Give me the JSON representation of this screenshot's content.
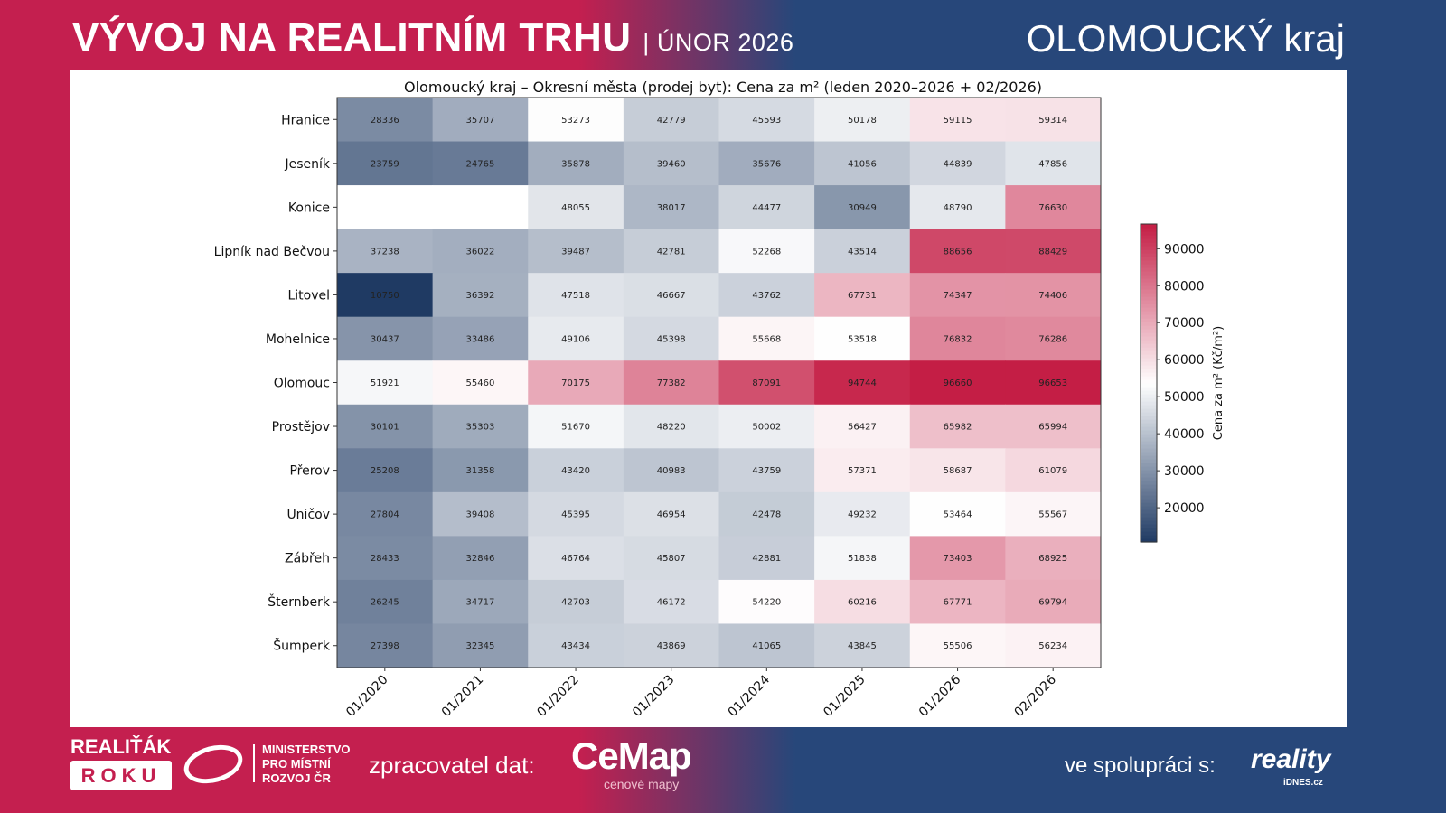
{
  "header": {
    "title": "VÝVOJ NA REALITNÍM TRHU",
    "separator": "|",
    "subtitle": "ÚNOR 2026",
    "region": "OLOMOUCKÝ kraj"
  },
  "footer": {
    "award_line1": "REALIŤÁK",
    "award_line2": "ROKU",
    "ministry": [
      "MINISTERSTVO",
      "PRO MÍSTNÍ",
      "ROZVOJ ČR"
    ],
    "processor_label": "zpracovatel dat:",
    "cemap_logo": "CeMap",
    "cemap_tagline": "cenové mapy",
    "partner_label": "ve spolupráci s:",
    "partner_logo": "reality",
    "partner_logo_sub": "iDNES.cz"
  },
  "colors": {
    "low": "#1f3a63",
    "mid": "#ffffff",
    "high": "#c41e45",
    "brand_red": "#c41f4f",
    "brand_blue": "#27477a"
  },
  "chart_data": {
    "type": "heatmap",
    "title": "Olomoucký kraj – Okresní města (prodej byt): Cena za m² (leden 2020–2026 + 02/2026)",
    "x_labels": [
      "01/2020",
      "01/2021",
      "01/2022",
      "01/2023",
      "01/2024",
      "01/2025",
      "01/2026",
      "02/2026"
    ],
    "y_labels": [
      "Hranice",
      "Jeseník",
      "Konice",
      "Lipník nad Bečvou",
      "Litovel",
      "Mohelnice",
      "Olomouc",
      "Prostějov",
      "Přerov",
      "Uničov",
      "Zábřeh",
      "Šternberk",
      "Šumperk"
    ],
    "values": [
      [
        28336,
        35707,
        53273,
        42779,
        45593,
        50178,
        59115,
        59314
      ],
      [
        23759,
        24765,
        35878,
        39460,
        35676,
        41056,
        44839,
        47856
      ],
      [
        null,
        null,
        48055,
        38017,
        44477,
        30949,
        48790,
        76630
      ],
      [
        37238,
        36022,
        39487,
        42781,
        52268,
        43514,
        88656,
        88429
      ],
      [
        10750,
        36392,
        47518,
        46667,
        43762,
        67731,
        74347,
        74406
      ],
      [
        30437,
        33486,
        49106,
        45398,
        55668,
        53518,
        76832,
        76286
      ],
      [
        51921,
        55460,
        70175,
        77382,
        87091,
        94744,
        96660,
        96653
      ],
      [
        30101,
        35303,
        51670,
        48220,
        50002,
        56427,
        65982,
        65994
      ],
      [
        25208,
        31358,
        43420,
        40983,
        43759,
        57371,
        58687,
        61079
      ],
      [
        27804,
        39408,
        45395,
        46954,
        42478,
        49232,
        53464,
        55567
      ],
      [
        28433,
        32846,
        46764,
        45807,
        42881,
        51838,
        73403,
        68925
      ],
      [
        26245,
        34717,
        42703,
        46172,
        54220,
        60216,
        67771,
        69794
      ],
      [
        27398,
        32345,
        43434,
        43869,
        41065,
        43845,
        55506,
        56234
      ]
    ],
    "colorbar": {
      "label": "Cena za m² (Kč/m²)",
      "ticks": [
        20000,
        30000,
        40000,
        50000,
        60000,
        70000,
        80000,
        90000
      ],
      "range": [
        10750,
        96660
      ]
    }
  }
}
